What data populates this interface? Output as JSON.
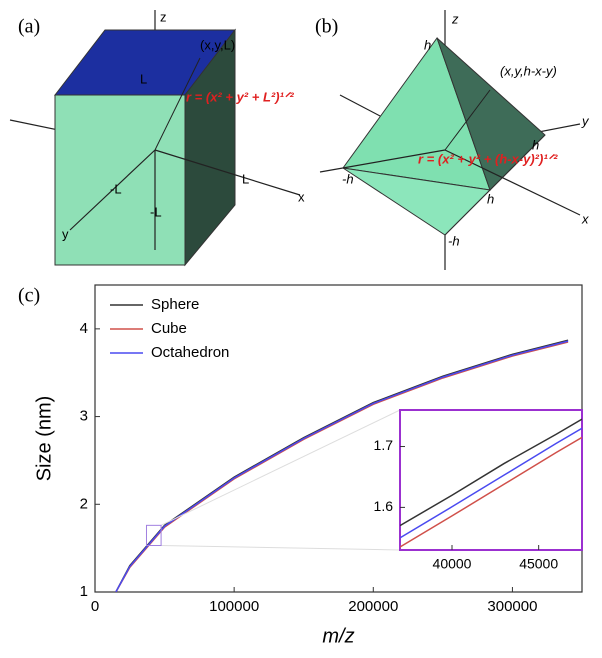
{
  "diagram_a": {
    "panel_label": "(a)",
    "labels": [
      "z",
      "(x,y,L)",
      "L",
      "r = (x² + y² + L²)¹ᐟ²",
      "-L",
      "L",
      "x",
      "-L",
      "y"
    ]
  },
  "diagram_b": {
    "panel_label": "(b)",
    "labels": [
      "z",
      "h",
      "(x,y,h-x-y)",
      "y",
      "h",
      "-h",
      "r = (x² + y² + (h-x-y)²)¹ᐟ²",
      "h",
      "x",
      "-h"
    ]
  },
  "chart_data": [
    {
      "type": "line",
      "panel_label": "(c)",
      "x_label": "m/z",
      "y_label": "Size (nm)",
      "x": [
        15000,
        25000,
        50000,
        100000,
        150000,
        200000,
        250000,
        300000,
        340000
      ],
      "series": [
        {
          "name": "Sphere",
          "color": "#333333",
          "values": [
            1.0,
            1.3,
            1.76,
            2.31,
            2.76,
            3.16,
            3.46,
            3.71,
            3.87
          ]
        },
        {
          "name": "Cube",
          "color": "#d0504a",
          "values": [
            1.0,
            1.28,
            1.74,
            2.29,
            2.74,
            3.14,
            3.44,
            3.69,
            3.85
          ]
        },
        {
          "name": "Octahedron",
          "color": "#4a4af0",
          "values": [
            1.0,
            1.29,
            1.75,
            2.3,
            2.75,
            3.15,
            3.45,
            3.7,
            3.86
          ]
        }
      ],
      "xlim": [
        0,
        350000
      ],
      "ylim": [
        1,
        4.5
      ],
      "xticks": [
        0,
        100000,
        200000,
        300000
      ],
      "yticks": [
        1,
        2,
        3,
        4
      ],
      "legend": "upper-left"
    },
    {
      "type": "line",
      "x": [
        37000,
        40000,
        43000,
        46000,
        47500
      ],
      "series": [
        {
          "name": "Sphere",
          "color": "#333333",
          "values": [
            1.57,
            1.62,
            1.672,
            1.72,
            1.745
          ]
        },
        {
          "name": "Cube",
          "color": "#d0504a",
          "values": [
            1.535,
            1.586,
            1.638,
            1.69,
            1.715
          ]
        },
        {
          "name": "Octahedron",
          "color": "#4a4af0",
          "values": [
            1.55,
            1.601,
            1.653,
            1.705,
            1.73
          ]
        }
      ],
      "xlim": [
        37000,
        47500
      ],
      "ylim": [
        1.53,
        1.76
      ],
      "xticks": [
        40000,
        45000
      ],
      "yticks": [
        1.6,
        1.7
      ],
      "frame_color": "#9b30d0"
    }
  ]
}
